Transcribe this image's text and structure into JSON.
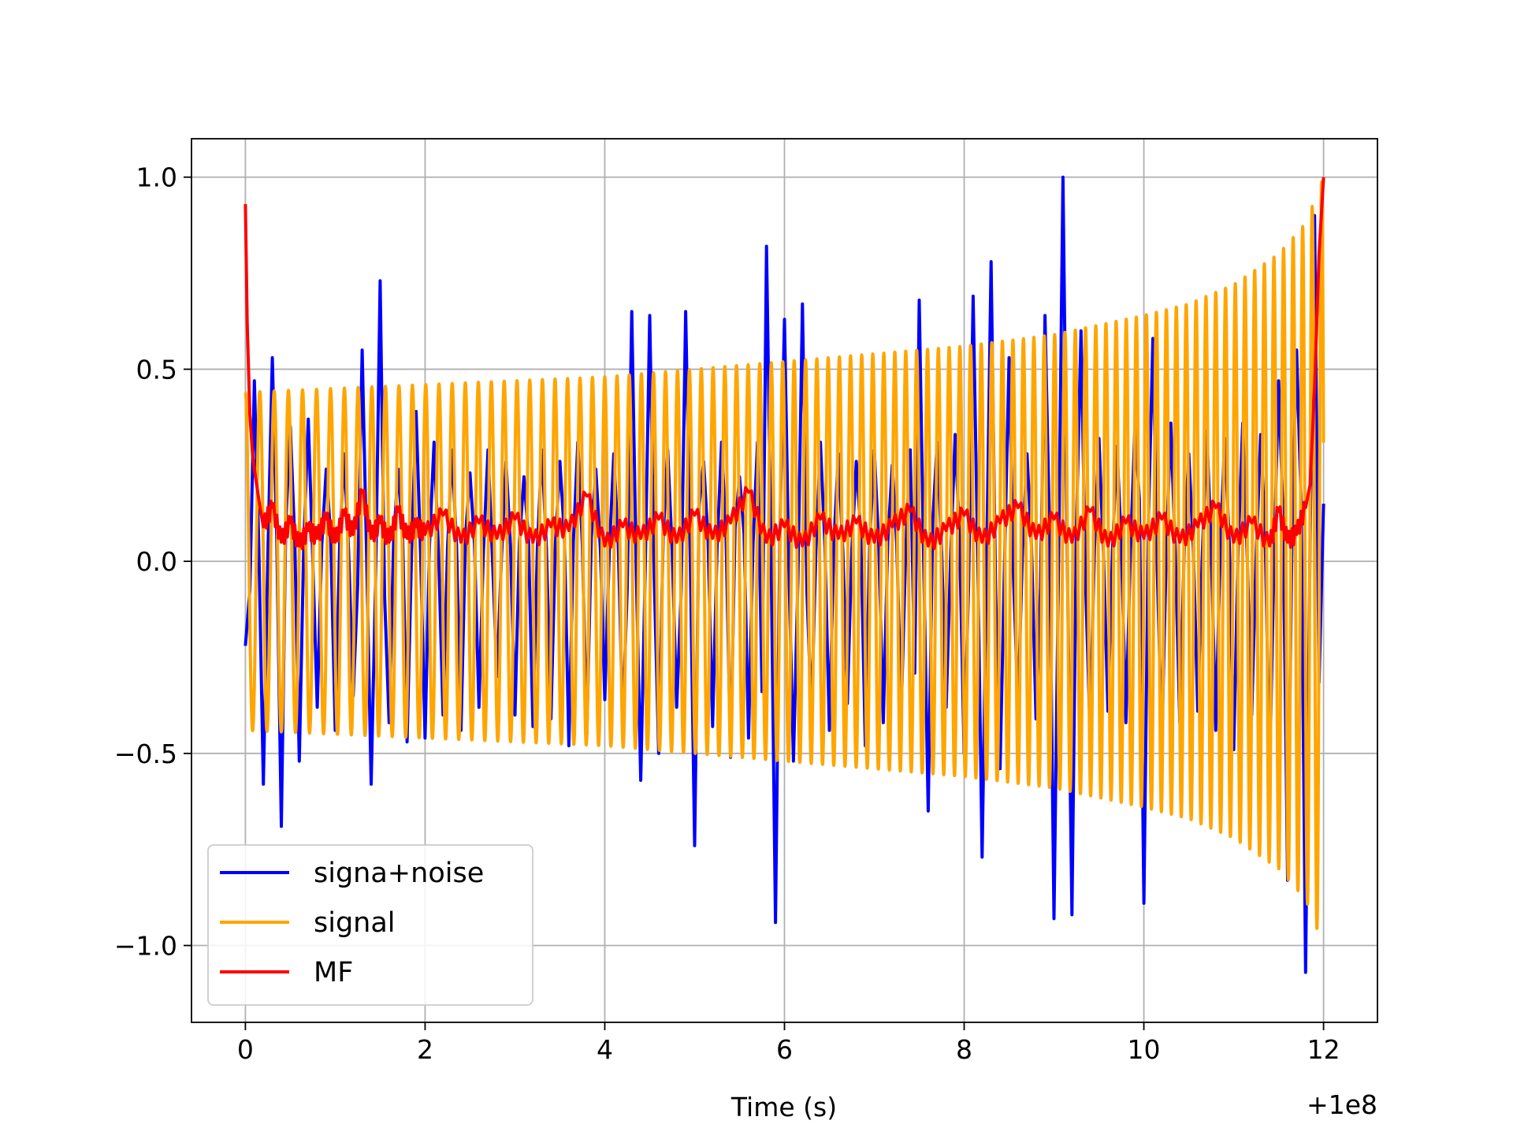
{
  "chart_data": {
    "type": "line",
    "title": "",
    "xlabel": "Time (s)",
    "ylabel": "",
    "x_offset_label": "+1e8",
    "xlim": [
      -0.6,
      12.6
    ],
    "ylim": [
      -1.2,
      1.1
    ],
    "xticks": [
      0,
      2,
      4,
      6,
      8,
      10,
      12
    ],
    "xtick_labels": [
      "0",
      "2",
      "4",
      "6",
      "8",
      "10",
      "12"
    ],
    "yticks": [
      -1.0,
      -0.5,
      0.0,
      0.5,
      1.0
    ],
    "ytick_labels": [
      "−1.0",
      "−0.5",
      "0.0",
      "0.5",
      "1.0"
    ],
    "grid": true,
    "legend_position": "lower-left",
    "series": [
      {
        "name": "signa+noise",
        "color": "#0000ff",
        "x": [
          0,
          0.1,
          0.2,
          0.3,
          0.4,
          0.5,
          0.6,
          0.7,
          0.8,
          0.9,
          1.0,
          1.1,
          1.2,
          1.3,
          1.4,
          1.5,
          1.6,
          1.7,
          1.8,
          1.9,
          2.0,
          2.1,
          2.2,
          2.3,
          2.4,
          2.5,
          2.6,
          2.7,
          2.8,
          2.9,
          3.0,
          3.1,
          3.2,
          3.3,
          3.4,
          3.5,
          3.6,
          3.7,
          3.8,
          3.9,
          4.0,
          4.1,
          4.2,
          4.3,
          4.4,
          4.5,
          4.6,
          4.7,
          4.8,
          4.9,
          5.0,
          5.1,
          5.2,
          5.3,
          5.4,
          5.5,
          5.6,
          5.7,
          5.8,
          5.9,
          6.0,
          6.1,
          6.2,
          6.3,
          6.4,
          6.5,
          6.6,
          6.7,
          6.8,
          6.9,
          7.0,
          7.1,
          7.2,
          7.3,
          7.4,
          7.5,
          7.6,
          7.7,
          7.8,
          7.9,
          8.0,
          8.1,
          8.2,
          8.3,
          8.4,
          8.5,
          8.6,
          8.7,
          8.8,
          8.9,
          9.0,
          9.1,
          9.2,
          9.3,
          9.4,
          9.5,
          9.6,
          9.7,
          9.8,
          9.9,
          10.0,
          10.1,
          10.2,
          10.3,
          10.4,
          10.5,
          10.6,
          10.7,
          10.8,
          10.9,
          11.0,
          11.1,
          11.2,
          11.3,
          11.4,
          11.5,
          11.6,
          11.7,
          11.8,
          11.9,
          12.0
        ],
        "values": [
          -0.22,
          0.47,
          -0.58,
          0.53,
          -0.69,
          0.35,
          -0.52,
          0.37,
          -0.38,
          0.24,
          -0.44,
          0.28,
          -0.35,
          0.55,
          -0.58,
          0.73,
          -0.42,
          0.24,
          -0.47,
          0.39,
          -0.46,
          0.31,
          -0.4,
          0.29,
          -0.44,
          0.23,
          -0.38,
          0.29,
          -0.3,
          0.26,
          -0.4,
          0.22,
          -0.43,
          0.29,
          -0.41,
          0.26,
          -0.48,
          0.31,
          -0.45,
          0.24,
          -0.36,
          0.28,
          -0.42,
          0.65,
          -0.57,
          0.64,
          -0.5,
          0.29,
          -0.38,
          0.65,
          -0.74,
          0.26,
          -0.43,
          0.31,
          -0.51,
          0.22,
          -0.46,
          0.31,
          0.82,
          -0.94,
          0.63,
          -0.52,
          0.67,
          -0.4,
          0.31,
          -0.44,
          0.28,
          -0.37,
          0.26,
          -0.48,
          0.29,
          -0.42,
          0.25,
          -0.39,
          0.29,
          0.68,
          -0.65,
          0.31,
          -0.38,
          0.33,
          -0.5,
          0.69,
          -0.77,
          0.78,
          -0.54,
          0.53,
          -0.38,
          0.28,
          -0.41,
          0.64,
          -0.93,
          1.0,
          -0.92,
          0.6,
          -0.44,
          0.32,
          -0.39,
          0.3,
          -0.42,
          0.35,
          -0.89,
          0.58,
          -0.47,
          0.36,
          -0.42,
          0.28,
          -0.39,
          0.34,
          -0.44,
          0.32,
          -0.49,
          0.36,
          -0.4,
          0.33,
          -0.55,
          0.47,
          -0.83,
          0.55,
          -1.07,
          0.9,
          0.15
        ]
      },
      {
        "name": "signal",
        "color": "#ffa500",
        "envelope_x": [
          0,
          1,
          2,
          3,
          4,
          5,
          6,
          7,
          8,
          9,
          10,
          10.5,
          11,
          11.5,
          11.8,
          12.0
        ],
        "envelope_amplitude": [
          0.44,
          0.45,
          0.46,
          0.47,
          0.48,
          0.5,
          0.52,
          0.54,
          0.56,
          0.59,
          0.64,
          0.67,
          0.72,
          0.8,
          0.88,
          1.0
        ],
        "cycles_per_second_start": 6.2,
        "cycles_per_second_end": 9.5
      },
      {
        "name": "MF",
        "color": "#ff0000",
        "x": [
          0,
          0.02,
          0.05,
          0.08,
          0.1,
          0.15,
          0.2,
          0.3,
          0.4,
          0.5,
          0.6,
          0.7,
          0.8,
          0.9,
          1.0,
          1.1,
          1.2,
          1.3,
          1.4,
          1.5,
          1.6,
          1.7,
          1.8,
          1.9,
          2.0,
          2.2,
          2.4,
          2.6,
          2.8,
          3.0,
          3.2,
          3.4,
          3.6,
          3.8,
          4.0,
          4.2,
          4.4,
          4.6,
          4.8,
          5.0,
          5.2,
          5.4,
          5.6,
          5.8,
          6.0,
          6.2,
          6.4,
          6.6,
          6.8,
          7.0,
          7.2,
          7.4,
          7.6,
          7.8,
          8.0,
          8.2,
          8.4,
          8.6,
          8.8,
          9.0,
          9.2,
          9.4,
          9.6,
          9.8,
          10.0,
          10.2,
          10.4,
          10.6,
          10.8,
          11.0,
          11.2,
          11.4,
          11.5,
          11.6,
          11.7,
          11.8,
          11.85,
          11.9,
          11.95,
          12.0
        ],
        "values": [
          0.93,
          0.62,
          0.38,
          0.28,
          0.24,
          0.16,
          0.09,
          0.14,
          0.05,
          0.1,
          0.04,
          0.08,
          0.06,
          0.11,
          0.05,
          0.12,
          0.07,
          0.18,
          0.06,
          0.1,
          0.05,
          0.13,
          0.06,
          0.09,
          0.07,
          0.12,
          0.05,
          0.1,
          0.06,
          0.11,
          0.05,
          0.09,
          0.08,
          0.17,
          0.04,
          0.09,
          0.06,
          0.11,
          0.05,
          0.12,
          0.06,
          0.1,
          0.18,
          0.05,
          0.09,
          0.04,
          0.11,
          0.06,
          0.1,
          0.05,
          0.09,
          0.13,
          0.04,
          0.08,
          0.12,
          0.05,
          0.1,
          0.14,
          0.06,
          0.11,
          0.05,
          0.13,
          0.04,
          0.1,
          0.06,
          0.11,
          0.05,
          0.09,
          0.14,
          0.05,
          0.1,
          0.04,
          0.13,
          0.05,
          0.07,
          0.14,
          0.2,
          0.45,
          0.8,
          1.0
        ]
      }
    ]
  }
}
